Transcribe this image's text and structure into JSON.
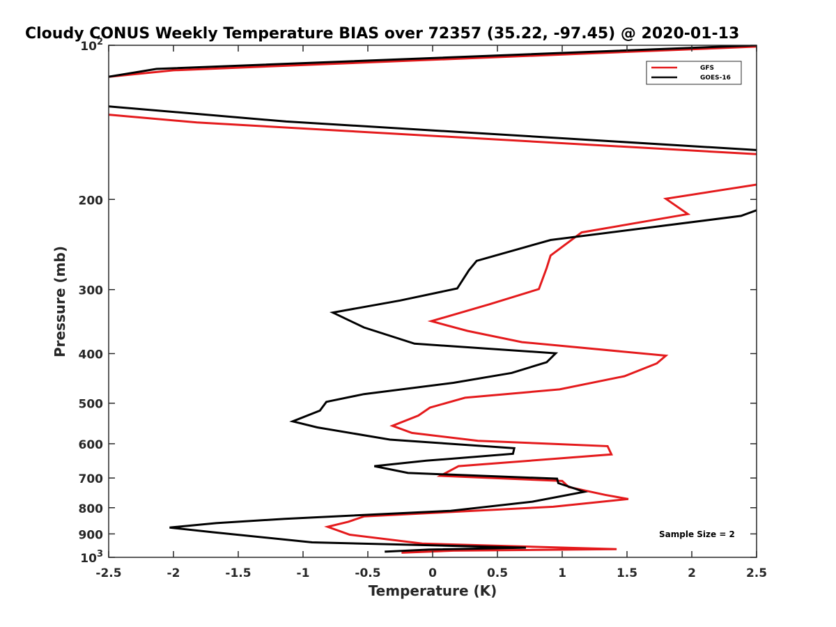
{
  "chart_data": {
    "type": "line",
    "title": "Cloudy CONUS Weekly Temperature BIAS over 72357 (35.22, -97.45) @ 2020-01-13",
    "xlabel": "Temperature (K)",
    "ylabel": "Pressure (mb)",
    "xlim": [
      -2.5,
      2.5
    ],
    "ylim": [
      100,
      1000
    ],
    "yscale": "log",
    "y_reversed": true,
    "grid": false,
    "legend_position": "top-right",
    "x_ticks": [
      "-2.5",
      "-2",
      "-1.5",
      "-1",
      "-0.5",
      "0",
      "0.5",
      "1",
      "1.5",
      "2",
      "2.5"
    ],
    "x_tick_values": [
      -2.5,
      -2,
      -1.5,
      -1,
      -0.5,
      0,
      0.5,
      1,
      1.5,
      2,
      2.5
    ],
    "y_ticks": [
      {
        "value": 100,
        "base": "10",
        "exp": "2"
      },
      {
        "value": 200,
        "label": "200"
      },
      {
        "value": 300,
        "label": "300"
      },
      {
        "value": 400,
        "label": "400"
      },
      {
        "value": 500,
        "label": "500"
      },
      {
        "value": 600,
        "label": "600"
      },
      {
        "value": 700,
        "label": "700"
      },
      {
        "value": 800,
        "label": "800"
      },
      {
        "value": 900,
        "label": "900"
      },
      {
        "value": 1000,
        "base": "10",
        "exp": "3"
      }
    ],
    "annotation": "Sample Size = 2",
    "series": [
      {
        "name": "GFS",
        "color": "#e41a1c",
        "points": [
          [
            2.5,
            100.6
          ],
          [
            -2.0,
            111.9
          ],
          [
            -2.5,
            115.2
          ],
          [
            null,
            null
          ],
          [
            -2.5,
            136.6
          ],
          [
            -1.82,
            141.5
          ],
          [
            2.5,
            163.2
          ],
          [
            null,
            null
          ],
          [
            2.5,
            187.1
          ],
          [
            1.8,
            199.4
          ],
          [
            1.97,
            213.6
          ],
          [
            1.15,
            232.0
          ],
          [
            0.91,
            257.4
          ],
          [
            0.88,
            272.2
          ],
          [
            0.82,
            299.3
          ],
          [
            0.44,
            320.4
          ],
          [
            -0.01,
            345.8
          ],
          [
            0.27,
            361.3
          ],
          [
            0.69,
            380.0
          ],
          [
            1.8,
            403.7
          ],
          [
            1.73,
            418.0
          ],
          [
            1.48,
            442.8
          ],
          [
            0.98,
            469.8
          ],
          [
            0.25,
            487.9
          ],
          [
            -0.02,
            509.9
          ],
          [
            -0.11,
            528.6
          ],
          [
            -0.31,
            553.6
          ],
          [
            -0.16,
            571.5
          ],
          [
            0.35,
            592.0
          ],
          [
            1.35,
            606.6
          ],
          [
            1.38,
            629.5
          ],
          [
            0.2,
            663.5
          ],
          [
            0.06,
            693.1
          ],
          [
            1.0,
            709.3
          ],
          [
            1.05,
            728.9
          ],
          [
            1.33,
            755.0
          ],
          [
            1.51,
            769.4
          ],
          [
            0.93,
            796.6
          ],
          [
            -0.53,
            831.9
          ],
          [
            -0.65,
            852.0
          ],
          [
            -0.81,
            871.7
          ],
          [
            -0.64,
            903.2
          ],
          [
            -0.08,
            940.2
          ],
          [
            1.42,
            963.8
          ],
          [
            0.16,
            970.5
          ],
          [
            -0.24,
            979.6
          ]
        ]
      },
      {
        "name": "GOES-16",
        "color": "#000000",
        "points": [
          [
            2.5,
            100.0
          ],
          [
            -2.13,
            111.2
          ],
          [
            -2.5,
            115.2
          ],
          [
            null,
            null
          ],
          [
            -2.5,
            131.6
          ],
          [
            -1.13,
            140.9
          ],
          [
            2.5,
            160.2
          ],
          [
            null,
            null
          ],
          [
            2.5,
            210.0
          ],
          [
            2.38,
            215.4
          ],
          [
            0.91,
            240.0
          ],
          [
            0.34,
            263.6
          ],
          [
            0.28,
            275.0
          ],
          [
            0.19,
            298.4
          ],
          [
            -0.25,
            315.0
          ],
          [
            -0.77,
            332.7
          ],
          [
            -0.53,
            355.7
          ],
          [
            -0.14,
            382.6
          ],
          [
            0.95,
            399.5
          ],
          [
            0.88,
            415.8
          ],
          [
            0.61,
            436.4
          ],
          [
            0.16,
            456.3
          ],
          [
            -0.53,
            480.0
          ],
          [
            -0.82,
            497.0
          ],
          [
            -0.87,
            517.0
          ],
          [
            -1.08,
            542.6
          ],
          [
            -0.89,
            557.6
          ],
          [
            -0.33,
            589.0
          ],
          [
            0.63,
            612.2
          ],
          [
            0.62,
            627.9
          ],
          [
            -0.05,
            647.6
          ],
          [
            -0.45,
            663.7
          ],
          [
            -0.19,
            684.3
          ],
          [
            0.96,
            702.0
          ],
          [
            0.97,
            716.3
          ],
          [
            1.1,
            734.5
          ],
          [
            1.17,
            745.0
          ],
          [
            0.77,
            778.6
          ],
          [
            0.14,
            811.2
          ],
          [
            -1.14,
            841.0
          ],
          [
            -1.67,
            857.3
          ],
          [
            -2.03,
            874.6
          ],
          [
            -1.7,
            893.2
          ],
          [
            -0.93,
            934.8
          ],
          [
            0.72,
            957.3
          ],
          [
            -0.03,
            965.7
          ],
          [
            -0.37,
            974.8
          ]
        ]
      }
    ]
  }
}
